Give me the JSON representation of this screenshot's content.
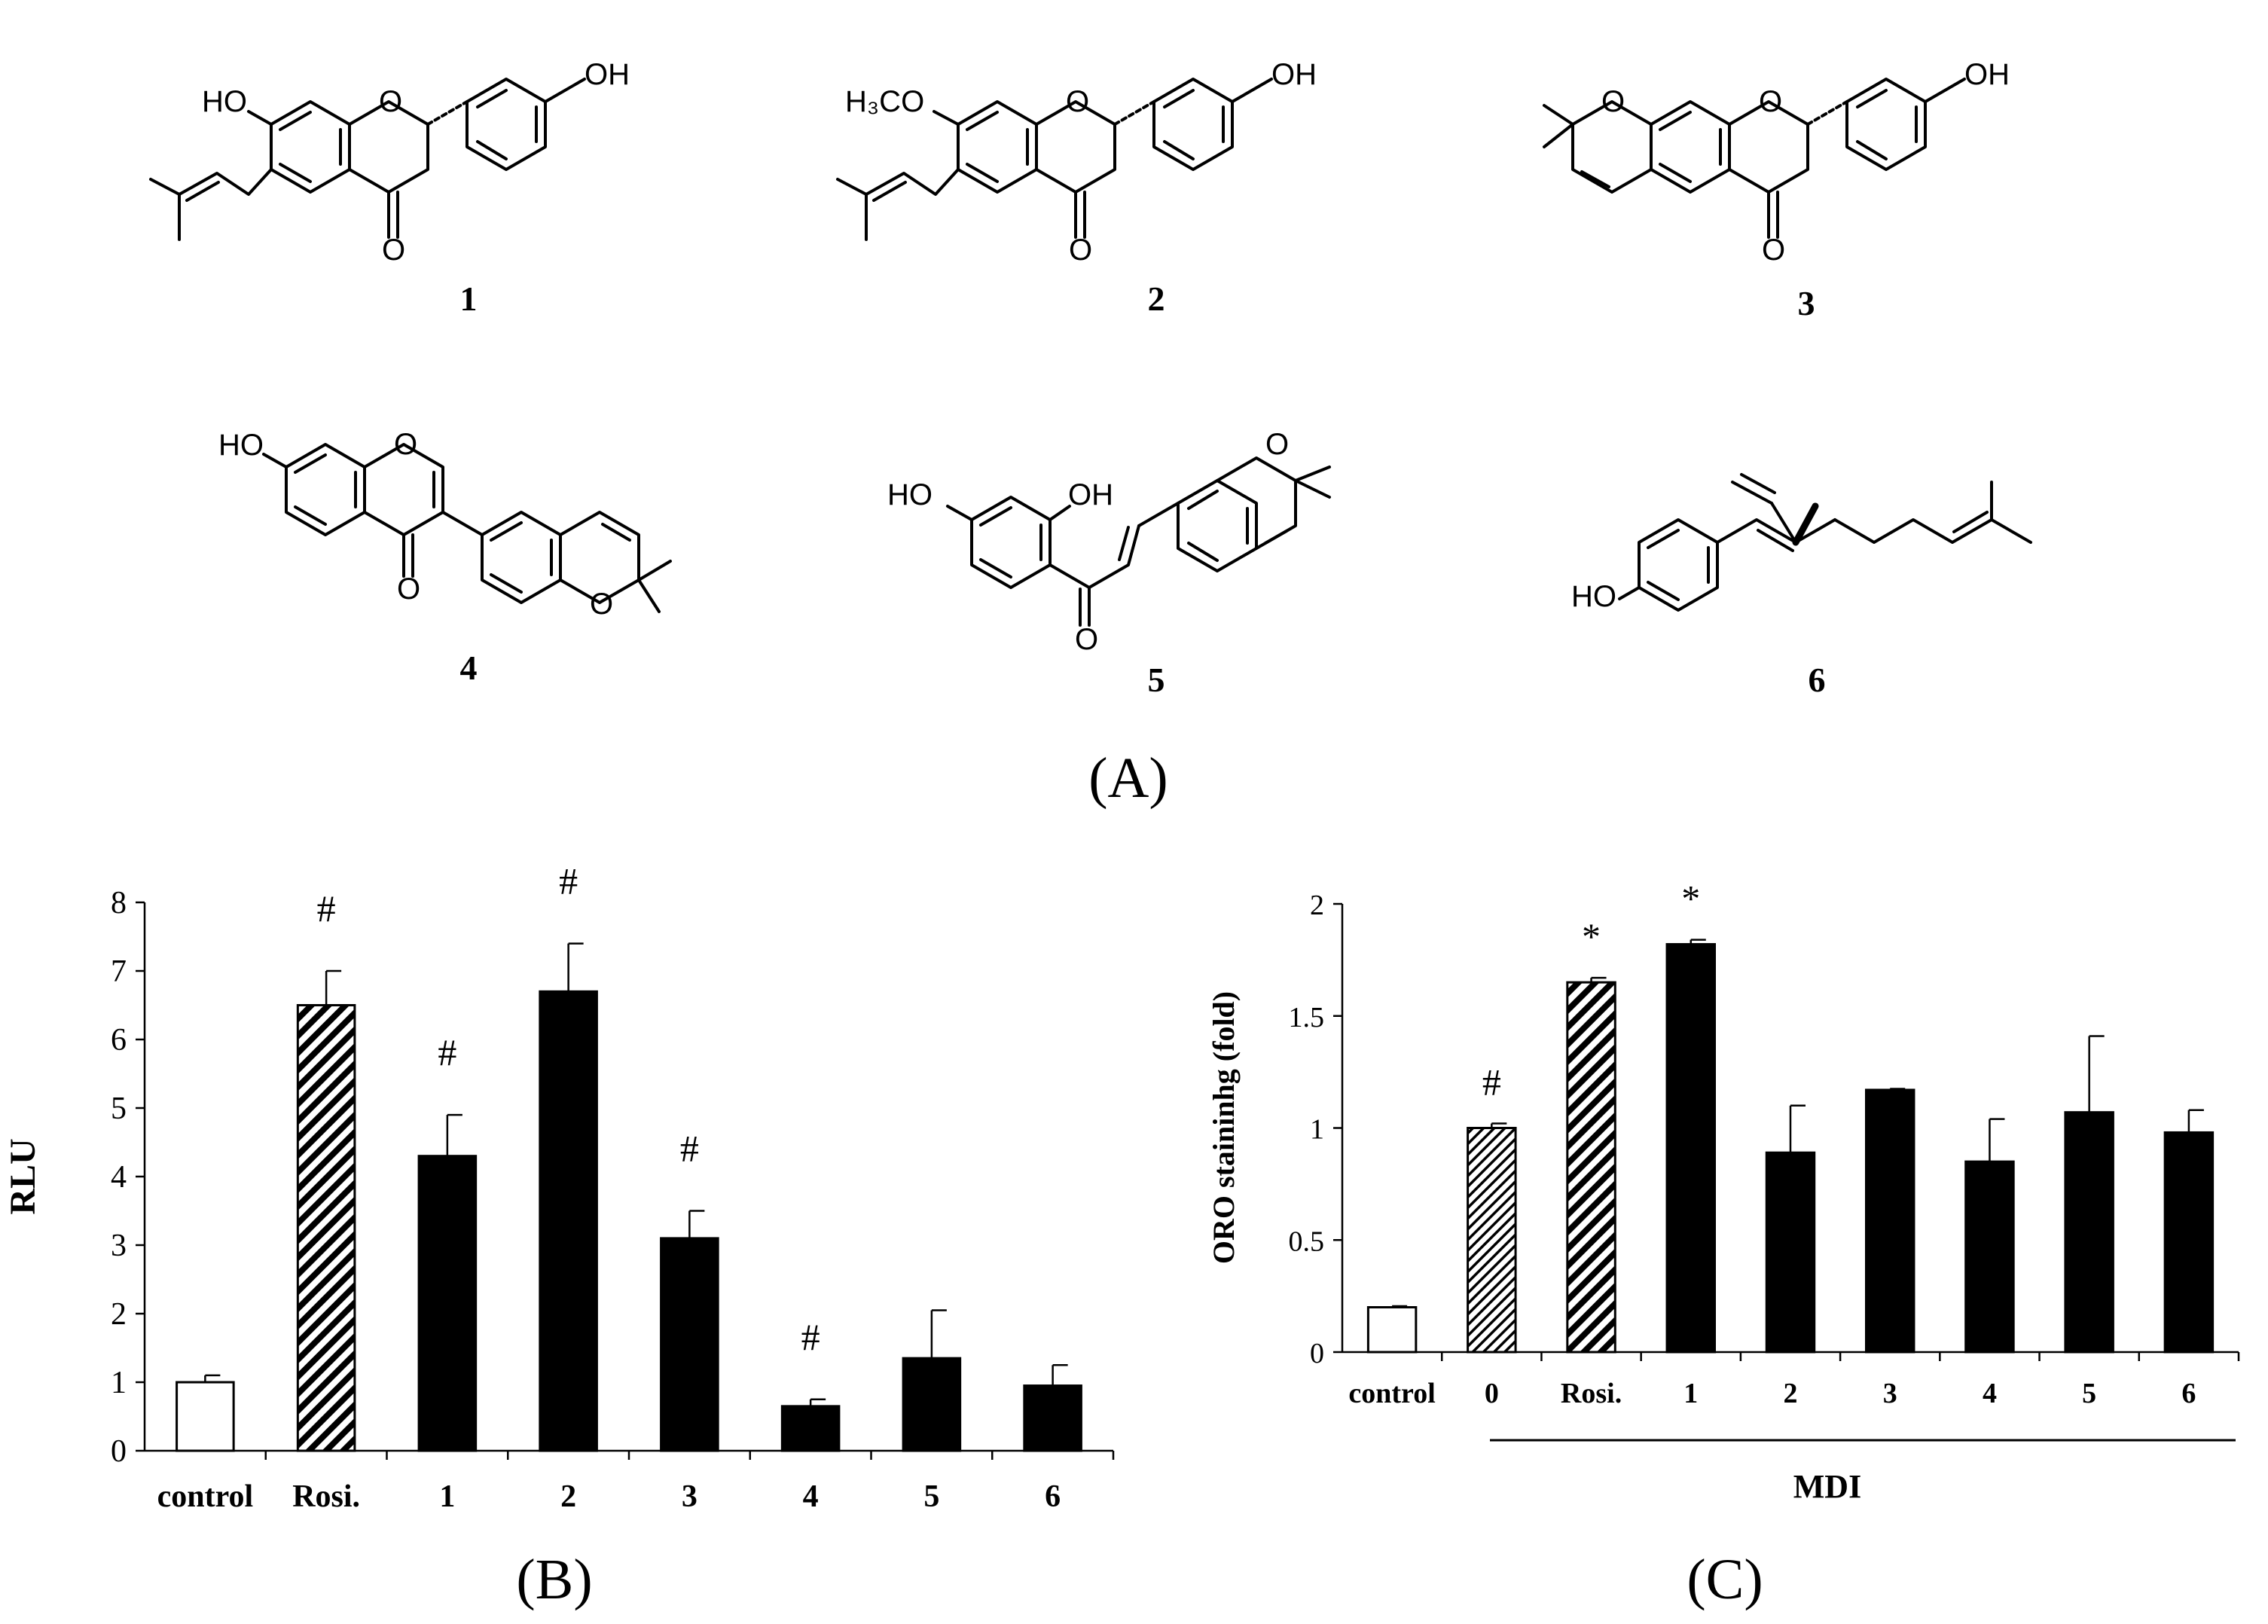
{
  "panel_a": {
    "compound_labels": [
      "1",
      "2",
      "3",
      "4",
      "5",
      "6"
    ],
    "atom_labels": {
      "c1": {
        "hydroxyl_top": "OH",
        "hydroxyl_left": "HO",
        "ring_oxygen": "O",
        "carbonyl_oxygen": "O"
      },
      "c2": {
        "hydroxyl_top": "OH",
        "methoxy": "H₃CO",
        "ring_oxygen": "O",
        "carbonyl_oxygen": "O"
      },
      "c3": {
        "hydroxyl_top": "OH",
        "pyran_oxygen": "O",
        "ring_oxygen": "O",
        "carbonyl_oxygen": "O"
      },
      "c4": {
        "hydroxyl": "HO",
        "ring_oxygen": "O",
        "carbonyl_oxygen": "O",
        "chromene_oxygen": "O"
      },
      "c5": {
        "hydroxyl_left": "HO",
        "hydroxyl_right": "OH",
        "chromene_oxygen": "O",
        "carbonyl_oxygen": "O"
      },
      "c6": {
        "hydroxyl": "HO"
      }
    },
    "panel_label": "(A)"
  },
  "chart_data": [
    {
      "type": "bar",
      "panel_label": "(B)",
      "title": "",
      "xlabel": "",
      "ylabel": "RLU",
      "ylim": [
        0,
        8
      ],
      "yticks": [
        "0",
        "1",
        "2",
        "3",
        "4",
        "5",
        "6",
        "7",
        "8"
      ],
      "categories": [
        "control",
        "Rosi.",
        "1",
        "2",
        "3",
        "4",
        "5",
        "6"
      ],
      "values": [
        1.0,
        6.5,
        4.3,
        6.7,
        3.1,
        0.65,
        1.35,
        0.95
      ],
      "errors": [
        0.1,
        0.5,
        0.6,
        0.7,
        0.4,
        0.1,
        0.7,
        0.3
      ],
      "fills": [
        "white",
        "hatch",
        "black",
        "black",
        "black",
        "black",
        "black",
        "black"
      ],
      "annotations": [
        "",
        "#",
        "#",
        "#",
        "#",
        "#",
        "",
        ""
      ],
      "grid": false,
      "legend": "none"
    },
    {
      "type": "bar",
      "panel_label": "(C)",
      "title": "",
      "xlabel": "MDI",
      "ylabel": "ORO staininhg (fold)",
      "ylim": [
        0,
        2
      ],
      "yticks": [
        "0",
        "0.5",
        "1",
        "1.5",
        "2"
      ],
      "categories": [
        "control",
        "0",
        "Rosi.",
        "1",
        "2",
        "3",
        "4",
        "5",
        "6"
      ],
      "values": [
        0.2,
        1.0,
        1.65,
        1.82,
        0.89,
        1.17,
        0.85,
        1.07,
        0.98
      ],
      "errors": [
        0.005,
        0.02,
        0.02,
        0.02,
        0.21,
        0.005,
        0.19,
        0.34,
        0.1
      ],
      "fills": [
        "white",
        "hatch-fine",
        "hatch",
        "black",
        "black",
        "black",
        "black",
        "black",
        "black"
      ],
      "annotations": [
        "",
        "#",
        "*",
        "*",
        "",
        "",
        "",
        "",
        ""
      ],
      "bracket_start_category": "0",
      "grid": false,
      "legend": "none"
    }
  ],
  "colors": {
    "ink": "#000000",
    "background": "#ffffff"
  }
}
